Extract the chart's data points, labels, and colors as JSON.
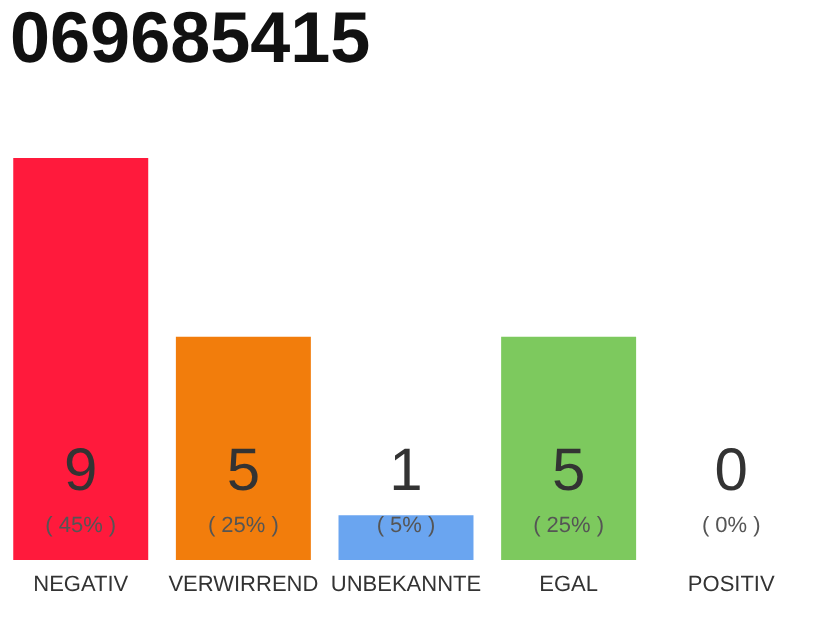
{
  "chart_data": {
    "type": "bar",
    "title": "069685415",
    "categories": [
      "NEGATIV",
      "VERWIRREND",
      "UNBEKANNTE",
      "EGAL",
      "POSITIV"
    ],
    "values": [
      45,
      25,
      5,
      25,
      0
    ],
    "colors": [
      "#ff1a3c",
      "#f27d0c",
      "#6aa5f0",
      "#7dc95e",
      "#cccccc"
    ],
    "value_labels": [
      "( 45% )",
      "( 25% )",
      "( 5% )",
      "( 25% )",
      "( 0% )"
    ],
    "annotations": [
      "9",
      "5",
      "1",
      "5",
      "0"
    ]
  }
}
